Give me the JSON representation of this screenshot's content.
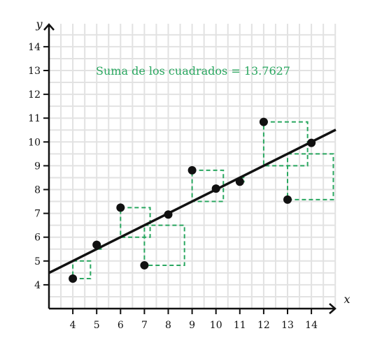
{
  "chart_data": {
    "type": "scatter",
    "xlabel": "x",
    "ylabel": "y",
    "xlim": [
      3,
      15
    ],
    "ylim": [
      3,
      15
    ],
    "x_ticks": [
      4,
      5,
      6,
      7,
      8,
      9,
      10,
      11,
      12,
      13,
      14
    ],
    "y_ticks": [
      4,
      5,
      6,
      7,
      8,
      9,
      10,
      11,
      12,
      13,
      14
    ],
    "grid": true,
    "annotation": "Suma de los cuadrados = 13.7627",
    "points": [
      {
        "x": 4,
        "y": 4.26
      },
      {
        "x": 5,
        "y": 5.68
      },
      {
        "x": 6,
        "y": 7.24
      },
      {
        "x": 7,
        "y": 4.82
      },
      {
        "x": 8,
        "y": 6.95
      },
      {
        "x": 9,
        "y": 8.81
      },
      {
        "x": 10,
        "y": 8.04
      },
      {
        "x": 11,
        "y": 8.33
      },
      {
        "x": 12,
        "y": 10.84
      },
      {
        "x": 13,
        "y": 7.58
      },
      {
        "x": 14,
        "y": 9.96
      }
    ],
    "regression_line": {
      "intercept": 3.0,
      "slope": 0.5
    },
    "colors": {
      "points": "#111111",
      "line": "#111111",
      "squares": "#2aa760",
      "grid": "#e2e2e2",
      "axes": "#111111"
    }
  }
}
